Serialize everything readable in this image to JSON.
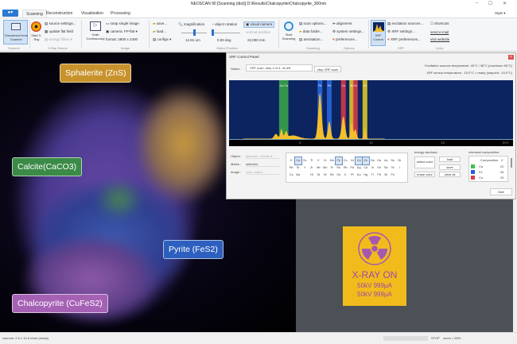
{
  "window": {
    "title": "NEOSCAN 90 [Scanning (dist)] D:\\Results\\Chalcopyrite\\Chalcopyrite_300nm",
    "style_label": "Style"
  },
  "tabs": [
    "Scanning",
    "Reconstruction",
    "Visualization",
    "Processing"
  ],
  "ribbon": {
    "scanner": {
      "disconnect": "Disconnect from Scanner",
      "group": "Scanner"
    },
    "xray": {
      "start": "Start X-Ray",
      "source_settings": "source settings...",
      "update_flat": "update flat field",
      "energy_filters": "energy filters",
      "group": "X-Ray Source"
    },
    "image": {
      "grab": "Grab Continuously",
      "snap": "snap single image",
      "camera": "camera: FP-flat",
      "format": "format: 2800 x 2400",
      "group": "Image"
    },
    "files": {
      "save": "save...",
      "load": "load...",
      "configs": "configs"
    },
    "position": {
      "magnification": "magnification",
      "mag_value": "14.91 um",
      "rotation": "object rotation",
      "rot_value": "0.00 deg",
      "visual_camera": "visual camera",
      "vertical": "vertical position",
      "vert_value": "22,000 mm",
      "group": "Object Position"
    },
    "scanning": {
      "start": "Start Scanning",
      "scan_options": "scan options...",
      "data_folder": "data folder...",
      "annotation": "annotation...",
      "group": "Scanning"
    },
    "options": {
      "alignment": "alignment",
      "system_settings": "system settings...",
      "preferences": "preferences...",
      "group": "Options"
    },
    "xrf": {
      "control": "XRF Control",
      "excitation": "excitation sources...",
      "settings": "XRF settings...",
      "preferences": "XRF preferences...",
      "group": "XRF"
    },
    "links": {
      "shortcuts": "shortcuts",
      "email": "send e-mail",
      "website": "visit website",
      "group": "Links"
    }
  },
  "minerals": [
    "Sphalerite (ZnS)",
    "Calcite(CaCO3)",
    "Pyrite (FeS2)",
    "Chalcopyrite (CuFeS2)"
  ],
  "mineral_colors": {
    "sphalerite": "#c8922c",
    "calcite": "#3b8a48",
    "pyrite": "#2d5fbe",
    "chalcopyrite": "#a562b5"
  },
  "xrf_panel": {
    "title": "XRF Control Panel",
    "status_label": "Status :",
    "status_value": "XRF scan, step 4 of 4, 3s left",
    "stop_button": "stop XRF scan",
    "excitation_temp": "Excitation sources temperature: 40°C / 38°C (maximum 60°C)",
    "sensor_temp": "XRF sensor temperature: -15.0°C = ready (setpoint: -15.0°C)",
    "spectrum": {
      "x_ticks": [
        "5",
        "10",
        "15"
      ],
      "x_unit": "keV",
      "x_range": [
        0,
        20
      ],
      "markers": [
        {
          "label": "Ca",
          "kev": 3.69,
          "color": "#3aa84a"
        },
        {
          "label": "Ca",
          "kev": 4.01,
          "color": "#3aa84a"
        },
        {
          "label": "Fe",
          "kev": 6.4,
          "color": "#2a6ae0"
        },
        {
          "label": "Fe",
          "kev": 7.06,
          "color": "#2a6ae0"
        },
        {
          "label": "Cu",
          "kev": 8.05,
          "color": "#e03a4a"
        },
        {
          "label": "Zn",
          "kev": 8.64,
          "color": "#e8d020"
        },
        {
          "label": "Cu",
          "kev": 8.9,
          "color": "#e03a4a"
        },
        {
          "label": "Zn",
          "kev": 9.57,
          "color": "#e8d020"
        }
      ]
    },
    "object_label": "Object :",
    "object_value": "diameter <10mm",
    "marks_label": "Marks :",
    "marks_value": "selected",
    "image_label": "Image :",
    "image_value": "color coded",
    "periodic_rows": [
      [
        "K",
        "Ca",
        "Sc",
        "Ti",
        "V",
        "Cr",
        "Mn",
        "Fe",
        "Co",
        "Ni",
        "Cu",
        "Zn",
        "Ga",
        "Ge",
        "As",
        "Se",
        "Br"
      ],
      [
        "Rb",
        "Sr",
        "Y",
        "Zr",
        "Nb",
        "Mo",
        "Tc",
        "Ru",
        "Rh",
        "Pd",
        "Ag",
        "Cd",
        "In",
        "Sn",
        "Sb",
        "Te",
        "I"
      ],
      [
        "Cs",
        "Ba",
        "",
        "Hf",
        "Ta",
        "W",
        "Re",
        "Os",
        "Ir",
        "Pt",
        "Au",
        "Hg",
        "Tl",
        "Pb",
        "Bi",
        "Po",
        ""
      ]
    ],
    "selected_elements": [
      "Ca",
      "Fe",
      "Cu",
      "Zn"
    ],
    "energy_windows": {
      "title": "energy windows",
      "select_color": "select color",
      "erase_color": "erase color",
      "load": "load",
      "save": "save",
      "clear_all": "clear all"
    },
    "composition": {
      "title": "chemical composition:",
      "col_name": "Composition",
      "col_z": "Z",
      "rows": [
        {
          "el": "Ca",
          "z": "20",
          "color": "#3fbf4f"
        },
        {
          "el": "Fe",
          "z": "26",
          "color": "#2060e0"
        },
        {
          "el": "Cu",
          "z": "29",
          "color": "#e03a4a"
        }
      ]
    },
    "hide_button": "hide"
  },
  "xray_sign": {
    "title": "X-RAY ON",
    "line1": "50kV 999µA",
    "line2": "50kV 999µA"
  },
  "statusbar": {
    "left": "vacuum: 2.5 x 10-6 mbar (ready)",
    "stop": "STOP",
    "zoom": "zoom = 50%"
  }
}
